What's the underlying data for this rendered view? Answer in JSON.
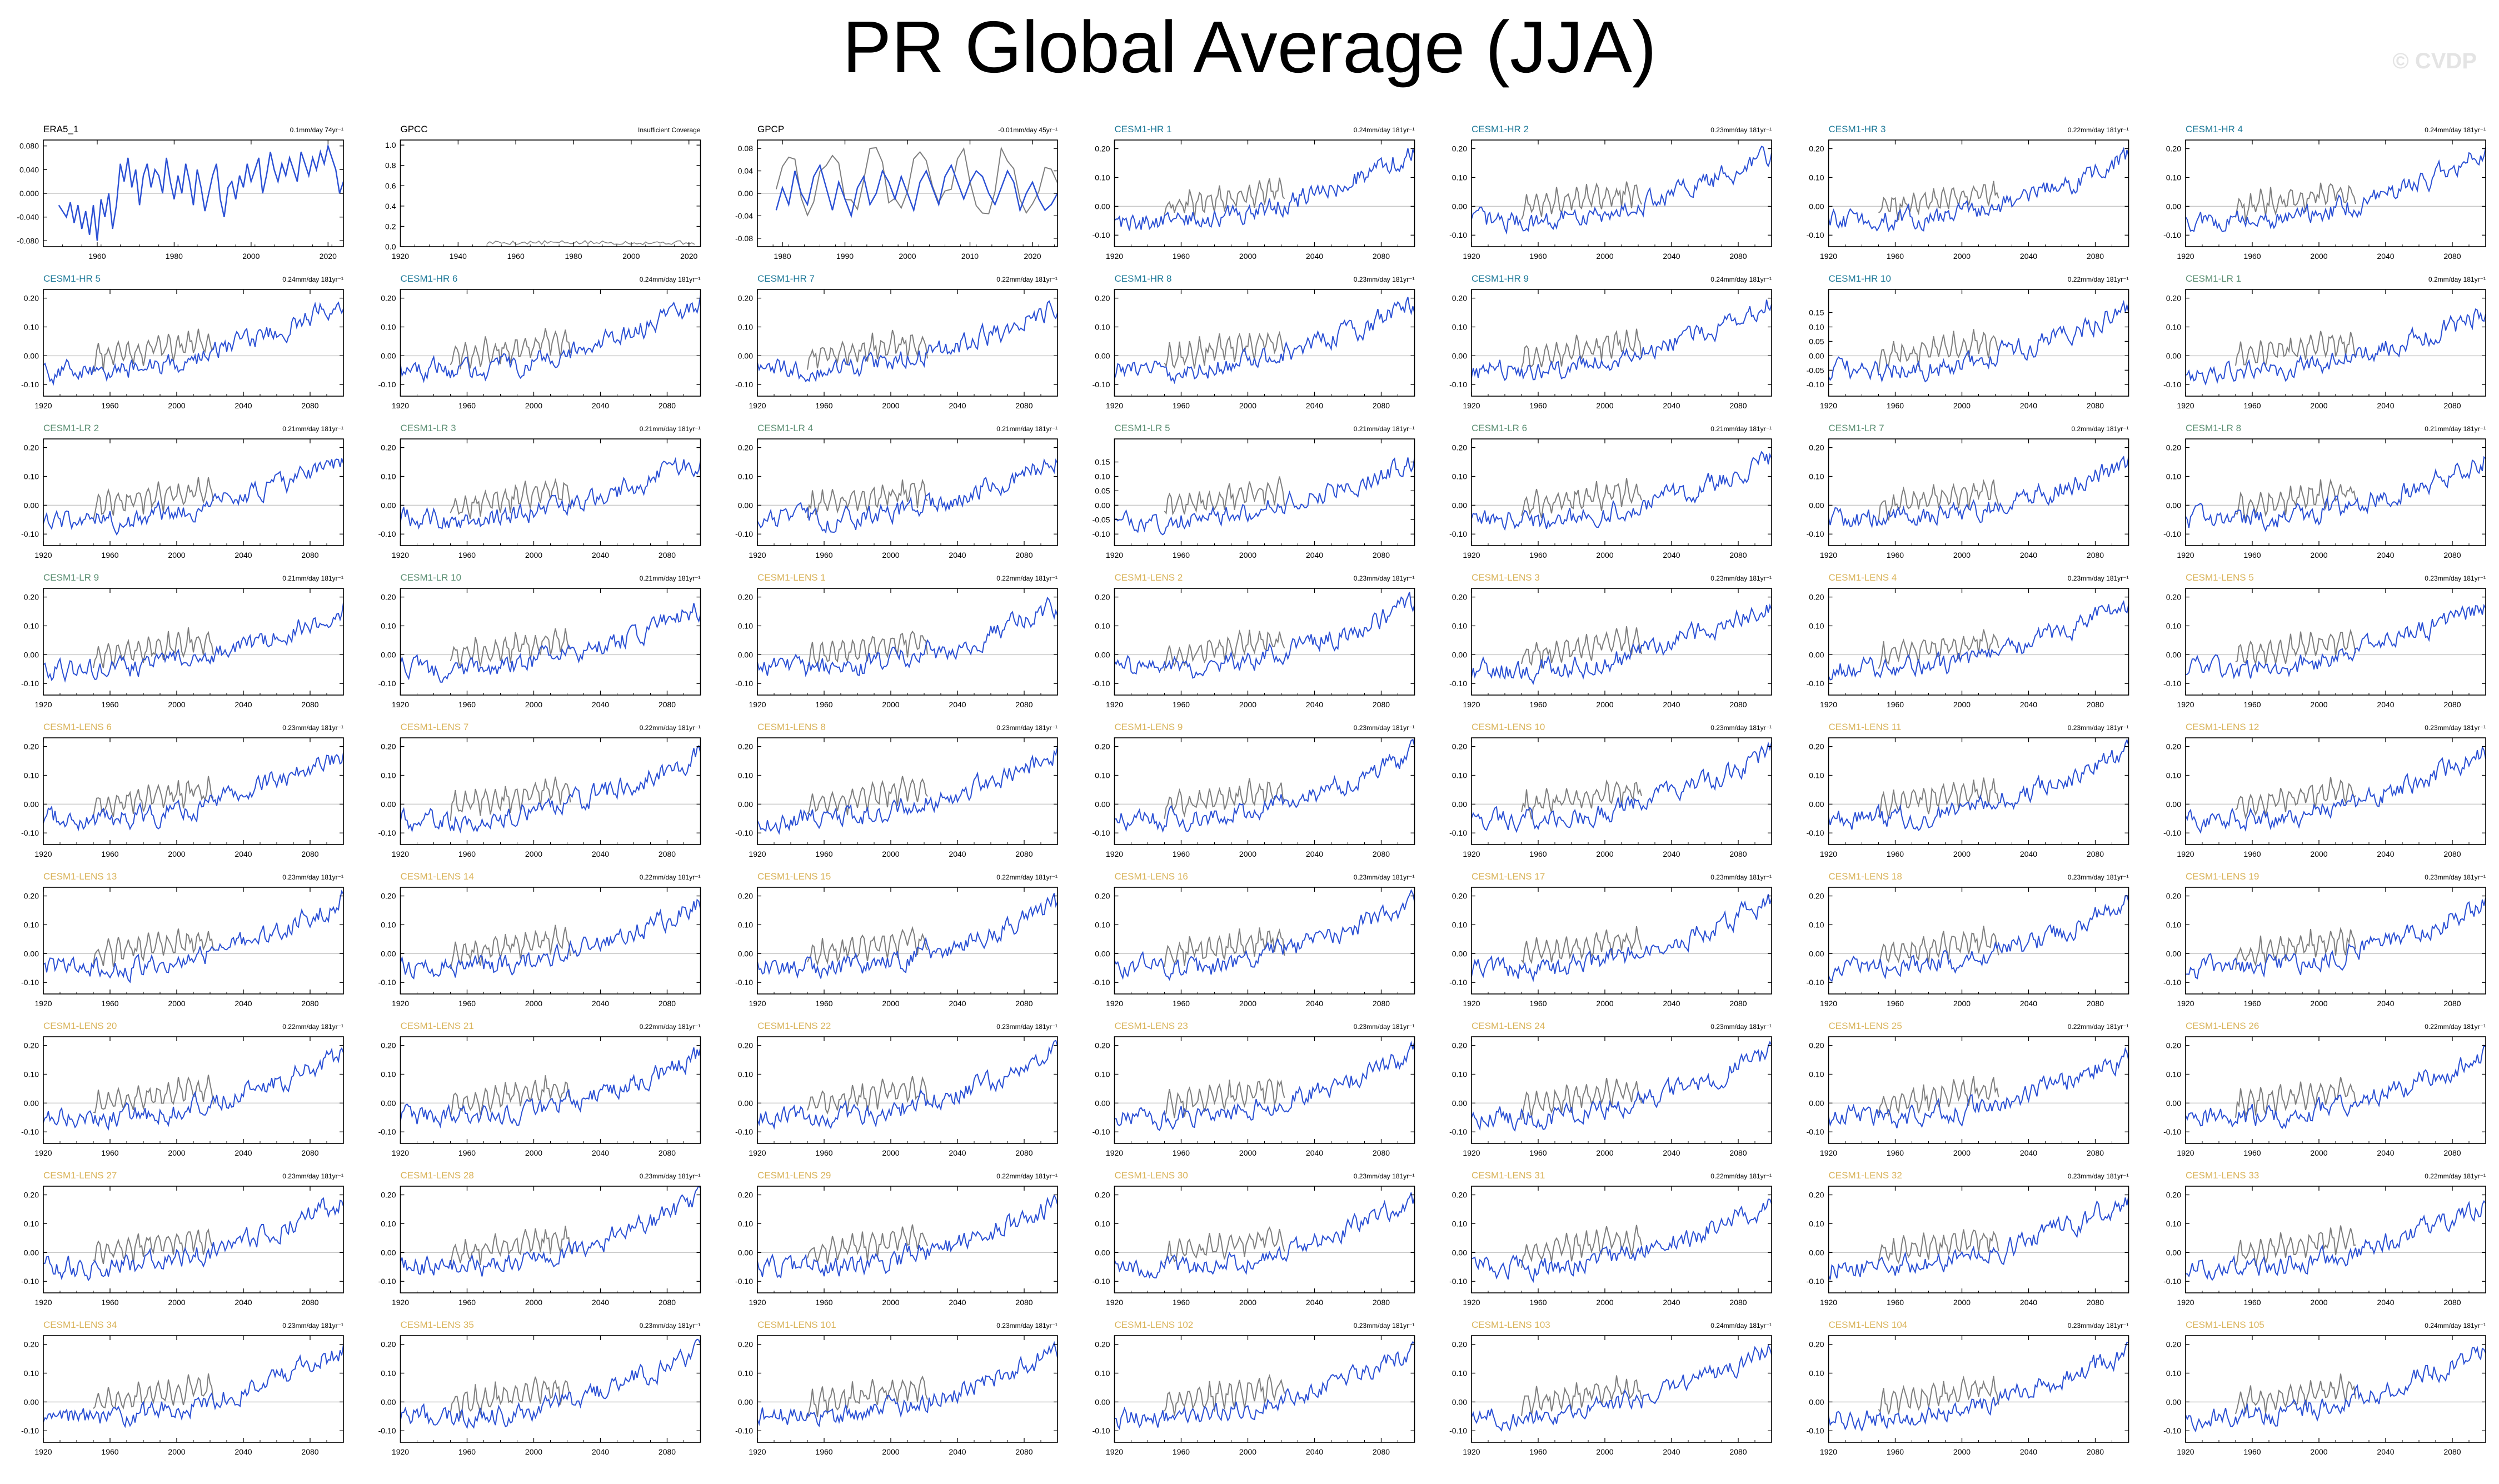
{
  "page": {
    "title": "PR Global Average (JJA)",
    "watermark": "© CVDP"
  },
  "colors": {
    "obs_title": "#000000",
    "hr_title": "#1f7a99",
    "lr_title": "#5c8f73",
    "lens_title": "#d9b35a",
    "model_line": "#2b50d4",
    "obs_overlay_line": "#7f7f7f",
    "zero_line": "#c8c8c8"
  },
  "chart_data": [
    {
      "type": "line",
      "title": "ERA5_1",
      "trend_label": "0.1mm/day 74yr⁻¹",
      "group": "obs",
      "xlim": [
        1946,
        2024
      ],
      "ylim": [
        -0.09,
        0.09
      ],
      "xticks": [
        1960,
        1980,
        2000,
        2020
      ],
      "yticks": [
        "0.080",
        "0.040",
        "0.000",
        "-0.040",
        "-0.080"
      ],
      "ytick_values": [
        0.08,
        0.04,
        0,
        -0.04,
        -0.08
      ],
      "series": [
        {
          "values": [
            -0.02,
            -0.03,
            -0.04,
            -0.015,
            -0.05,
            -0.02,
            -0.06,
            -0.03,
            -0.07,
            -0.02,
            -0.08,
            -0.01,
            -0.04,
            0.0,
            -0.06,
            -0.02,
            0.05,
            0.02,
            0.06,
            0.01,
            0.04,
            -0.02,
            0.03,
            0.05,
            0.01,
            0.04,
            0.03,
            0.0,
            0.06,
            0.02,
            -0.01,
            0.03,
            0.0,
            0.05,
            0.02,
            -0.02,
            0.04,
            0.01,
            -0.03,
            0.0,
            0.03,
            0.05,
            -0.01,
            -0.04,
            0.01,
            0.02,
            -0.01,
            0.03,
            0.01,
            0.05,
            0.02,
            0.04,
            0.06,
            0.0,
            0.03,
            0.07,
            0.04,
            0.02,
            0.05,
            0.03,
            0.06,
            0.04,
            0.02,
            0.07,
            0.05,
            0.03,
            0.06,
            0.04,
            0.07,
            0.05,
            0.08,
            0.06,
            0.04,
            0.0,
            0.02
          ]
        }
      ]
    },
    {
      "type": "line",
      "title": "GPCC",
      "trend_label": "Insufficient Coverage",
      "group": "obs",
      "xlim": [
        1920,
        2024
      ],
      "ylim": [
        0,
        1.05
      ],
      "xticks": [
        1920,
        1940,
        1960,
        1980,
        2000,
        2020
      ],
      "yticks": [
        "1.0",
        "0.8",
        "0.6",
        "0.4",
        "0.2",
        "0.0"
      ],
      "ytick_values": [
        1,
        0.8,
        0.6,
        0.4,
        0.2,
        0
      ],
      "series": []
    },
    {
      "type": "line",
      "title": "GPCP",
      "trend_label": "-0.01mm/day 45yr⁻¹",
      "group": "obs",
      "xlim": [
        1976,
        2024
      ],
      "ylim": [
        -0.095,
        0.095
      ],
      "xticks": [
        1980,
        1990,
        2000,
        2010,
        2020
      ],
      "yticks": [
        "0.08",
        "0.04",
        "0.00",
        "-0.04",
        "-0.08"
      ],
      "ytick_values": [
        0.08,
        0.04,
        0,
        -0.04,
        -0.08
      ],
      "series": [
        {
          "values": [
            -0.03,
            0.01,
            -0.02,
            0.04,
            0.0,
            -0.02,
            0.03,
            0.05,
            0.01,
            -0.03,
            0.02,
            -0.01,
            -0.04,
            0.01,
            0.03,
            -0.02,
            0.0,
            0.04,
            0.02,
            -0.01,
            0.03,
            0.0,
            -0.03,
            0.02,
            0.04,
            0.01,
            -0.02,
            0.03,
            0.05,
            0.02,
            -0.01,
            0.02,
            0.04,
            0.03,
            0.0,
            -0.02,
            0.01,
            0.04,
            0.02,
            -0.03,
            0.0,
            0.02,
            -0.01,
            -0.03,
            -0.02,
            0.0
          ]
        }
      ]
    },
    {
      "type": "line",
      "title": "CESM1-HR 1",
      "trend_label": "0.24mm/day 181yr⁻¹",
      "group": "hr"
    },
    {
      "type": "line",
      "title": "CESM1-HR 2",
      "trend_label": "0.23mm/day 181yr⁻¹",
      "group": "hr"
    },
    {
      "type": "line",
      "title": "CESM1-HR 3",
      "trend_label": "0.22mm/day 181yr⁻¹",
      "group": "hr"
    },
    {
      "type": "line",
      "title": "CESM1-HR 4",
      "trend_label": "0.24mm/day 181yr⁻¹",
      "group": "hr"
    },
    {
      "type": "line",
      "title": "CESM1-HR 5",
      "trend_label": "0.24mm/day 181yr⁻¹",
      "group": "hr"
    },
    {
      "type": "line",
      "title": "CESM1-HR 6",
      "trend_label": "0.24mm/day 181yr⁻¹",
      "group": "hr"
    },
    {
      "type": "line",
      "title": "CESM1-HR 7",
      "trend_label": "0.22mm/day 181yr⁻¹",
      "group": "hr"
    },
    {
      "type": "line",
      "title": "CESM1-HR 8",
      "trend_label": "0.23mm/day 181yr⁻¹",
      "group": "hr"
    },
    {
      "type": "line",
      "title": "CESM1-HR 9",
      "trend_label": "0.24mm/day 181yr⁻¹",
      "group": "hr"
    },
    {
      "type": "line",
      "title": "CESM1-HR 10",
      "trend_label": "0.22mm/day 181yr⁻¹",
      "group": "hr",
      "yticks": [
        "0.15",
        "0.10",
        "0.05",
        "0.00",
        "-0.05",
        "-0.10"
      ],
      "ytick_values": [
        0.15,
        0.1,
        0.05,
        0,
        -0.05,
        -0.1
      ]
    },
    {
      "type": "line",
      "title": "CESM1-LR 1",
      "trend_label": "0.2mm/day 181yr⁻¹",
      "group": "lr"
    },
    {
      "type": "line",
      "title": "CESM1-LR 2",
      "trend_label": "0.21mm/day 181yr⁻¹",
      "group": "lr"
    },
    {
      "type": "line",
      "title": "CESM1-LR 3",
      "trend_label": "0.21mm/day 181yr⁻¹",
      "group": "lr"
    },
    {
      "type": "line",
      "title": "CESM1-LR 4",
      "trend_label": "0.21mm/day 181yr⁻¹",
      "group": "lr"
    },
    {
      "type": "line",
      "title": "CESM1-LR 5",
      "trend_label": "0.21mm/day 181yr⁻¹",
      "group": "lr",
      "yticks": [
        "0.15",
        "0.10",
        "0.05",
        "0.00",
        "-0.05",
        "-0.10"
      ],
      "ytick_values": [
        0.15,
        0.1,
        0.05,
        0,
        -0.05,
        -0.1
      ]
    },
    {
      "type": "line",
      "title": "CESM1-LR 6",
      "trend_label": "0.21mm/day 181yr⁻¹",
      "group": "lr"
    },
    {
      "type": "line",
      "title": "CESM1-LR 7",
      "trend_label": "0.2mm/day 181yr⁻¹",
      "group": "lr"
    },
    {
      "type": "line",
      "title": "CESM1-LR 8",
      "trend_label": "0.21mm/day 181yr⁻¹",
      "group": "lr"
    },
    {
      "type": "line",
      "title": "CESM1-LR 9",
      "trend_label": "0.21mm/day 181yr⁻¹",
      "group": "lr"
    },
    {
      "type": "line",
      "title": "CESM1-LR 10",
      "trend_label": "0.21mm/day 181yr⁻¹",
      "group": "lr"
    },
    {
      "type": "line",
      "title": "CESM1-LENS 1",
      "trend_label": "0.22mm/day 181yr⁻¹",
      "group": "lens"
    },
    {
      "type": "line",
      "title": "CESM1-LENS 2",
      "trend_label": "0.23mm/day 181yr⁻¹",
      "group": "lens"
    },
    {
      "type": "line",
      "title": "CESM1-LENS 3",
      "trend_label": "0.23mm/day 181yr⁻¹",
      "group": "lens"
    },
    {
      "type": "line",
      "title": "CESM1-LENS 4",
      "trend_label": "0.23mm/day 181yr⁻¹",
      "group": "lens"
    },
    {
      "type": "line",
      "title": "CESM1-LENS 5",
      "trend_label": "0.23mm/day 181yr⁻¹",
      "group": "lens"
    },
    {
      "type": "line",
      "title": "CESM1-LENS 6",
      "trend_label": "0.23mm/day 181yr⁻¹",
      "group": "lens"
    },
    {
      "type": "line",
      "title": "CESM1-LENS 7",
      "trend_label": "0.22mm/day 181yr⁻¹",
      "group": "lens"
    },
    {
      "type": "line",
      "title": "CESM1-LENS 8",
      "trend_label": "0.23mm/day 181yr⁻¹",
      "group": "lens"
    },
    {
      "type": "line",
      "title": "CESM1-LENS 9",
      "trend_label": "0.23mm/day 181yr⁻¹",
      "group": "lens"
    },
    {
      "type": "line",
      "title": "CESM1-LENS 10",
      "trend_label": "0.23mm/day 181yr⁻¹",
      "group": "lens"
    },
    {
      "type": "line",
      "title": "CESM1-LENS 11",
      "trend_label": "0.23mm/day 181yr⁻¹",
      "group": "lens"
    },
    {
      "type": "line",
      "title": "CESM1-LENS 12",
      "trend_label": "0.23mm/day 181yr⁻¹",
      "group": "lens"
    },
    {
      "type": "line",
      "title": "CESM1-LENS 13",
      "trend_label": "0.23mm/day 181yr⁻¹",
      "group": "lens"
    },
    {
      "type": "line",
      "title": "CESM1-LENS 14",
      "trend_label": "0.22mm/day 181yr⁻¹",
      "group": "lens"
    },
    {
      "type": "line",
      "title": "CESM1-LENS 15",
      "trend_label": "0.22mm/day 181yr⁻¹",
      "group": "lens"
    },
    {
      "type": "line",
      "title": "CESM1-LENS 16",
      "trend_label": "0.23mm/day 181yr⁻¹",
      "group": "lens"
    },
    {
      "type": "line",
      "title": "CESM1-LENS 17",
      "trend_label": "0.23mm/day 181yr⁻¹",
      "group": "lens"
    },
    {
      "type": "line",
      "title": "CESM1-LENS 18",
      "trend_label": "0.23mm/day 181yr⁻¹",
      "group": "lens"
    },
    {
      "type": "line",
      "title": "CESM1-LENS 19",
      "trend_label": "0.23mm/day 181yr⁻¹",
      "group": "lens"
    },
    {
      "type": "line",
      "title": "CESM1-LENS 20",
      "trend_label": "0.22mm/day 181yr⁻¹",
      "group": "lens"
    },
    {
      "type": "line",
      "title": "CESM1-LENS 21",
      "trend_label": "0.22mm/day 181yr⁻¹",
      "group": "lens"
    },
    {
      "type": "line",
      "title": "CESM1-LENS 22",
      "trend_label": "0.23mm/day 181yr⁻¹",
      "group": "lens"
    },
    {
      "type": "line",
      "title": "CESM1-LENS 23",
      "trend_label": "0.23mm/day 181yr⁻¹",
      "group": "lens"
    },
    {
      "type": "line",
      "title": "CESM1-LENS 24",
      "trend_label": "0.23mm/day 181yr⁻¹",
      "group": "lens"
    },
    {
      "type": "line",
      "title": "CESM1-LENS 25",
      "trend_label": "0.22mm/day 181yr⁻¹",
      "group": "lens"
    },
    {
      "type": "line",
      "title": "CESM1-LENS 26",
      "trend_label": "0.22mm/day 181yr⁻¹",
      "group": "lens"
    },
    {
      "type": "line",
      "title": "CESM1-LENS 27",
      "trend_label": "0.23mm/day 181yr⁻¹",
      "group": "lens"
    },
    {
      "type": "line",
      "title": "CESM1-LENS 28",
      "trend_label": "0.23mm/day 181yr⁻¹",
      "group": "lens"
    },
    {
      "type": "line",
      "title": "CESM1-LENS 29",
      "trend_label": "0.22mm/day 181yr⁻¹",
      "group": "lens"
    },
    {
      "type": "line",
      "title": "CESM1-LENS 30",
      "trend_label": "0.23mm/day 181yr⁻¹",
      "group": "lens"
    },
    {
      "type": "line",
      "title": "CESM1-LENS 31",
      "trend_label": "0.22mm/day 181yr⁻¹",
      "group": "lens"
    },
    {
      "type": "line",
      "title": "CESM1-LENS 32",
      "trend_label": "0.23mm/day 181yr⁻¹",
      "group": "lens"
    },
    {
      "type": "line",
      "title": "CESM1-LENS 33",
      "trend_label": "0.22mm/day 181yr⁻¹",
      "group": "lens"
    },
    {
      "type": "line",
      "title": "CESM1-LENS 34",
      "trend_label": "0.23mm/day 181yr⁻¹",
      "group": "lens"
    },
    {
      "type": "line",
      "title": "CESM1-LENS 35",
      "trend_label": "0.23mm/day 181yr⁻¹",
      "group": "lens"
    },
    {
      "type": "line",
      "title": "CESM1-LENS 101",
      "trend_label": "0.23mm/day 181yr⁻¹",
      "group": "lens"
    },
    {
      "type": "line",
      "title": "CESM1-LENS 102",
      "trend_label": "0.23mm/day 181yr⁻¹",
      "group": "lens"
    },
    {
      "type": "line",
      "title": "CESM1-LENS 103",
      "trend_label": "0.24mm/day 181yr⁻¹",
      "group": "lens"
    },
    {
      "type": "line",
      "title": "CESM1-LENS 104",
      "trend_label": "0.23mm/day 181yr⁻¹",
      "group": "lens"
    },
    {
      "type": "line",
      "title": "CESM1-LENS 105",
      "trend_label": "0.24mm/day 181yr⁻¹",
      "group": "lens"
    }
  ],
  "model_defaults": {
    "xlim": [
      1920,
      2100
    ],
    "ylim": [
      -0.14,
      0.23
    ],
    "xticks": [
      1920,
      1960,
      2000,
      2040,
      2080
    ],
    "yticks": [
      "0.20",
      "0.10",
      "0.00",
      "-0.10"
    ],
    "ytick_values": [
      0.2,
      0.1,
      0,
      -0.1
    ],
    "model_series_years": [
      1920,
      2100
    ],
    "obs_overlay_years": [
      1950,
      2022
    ]
  }
}
